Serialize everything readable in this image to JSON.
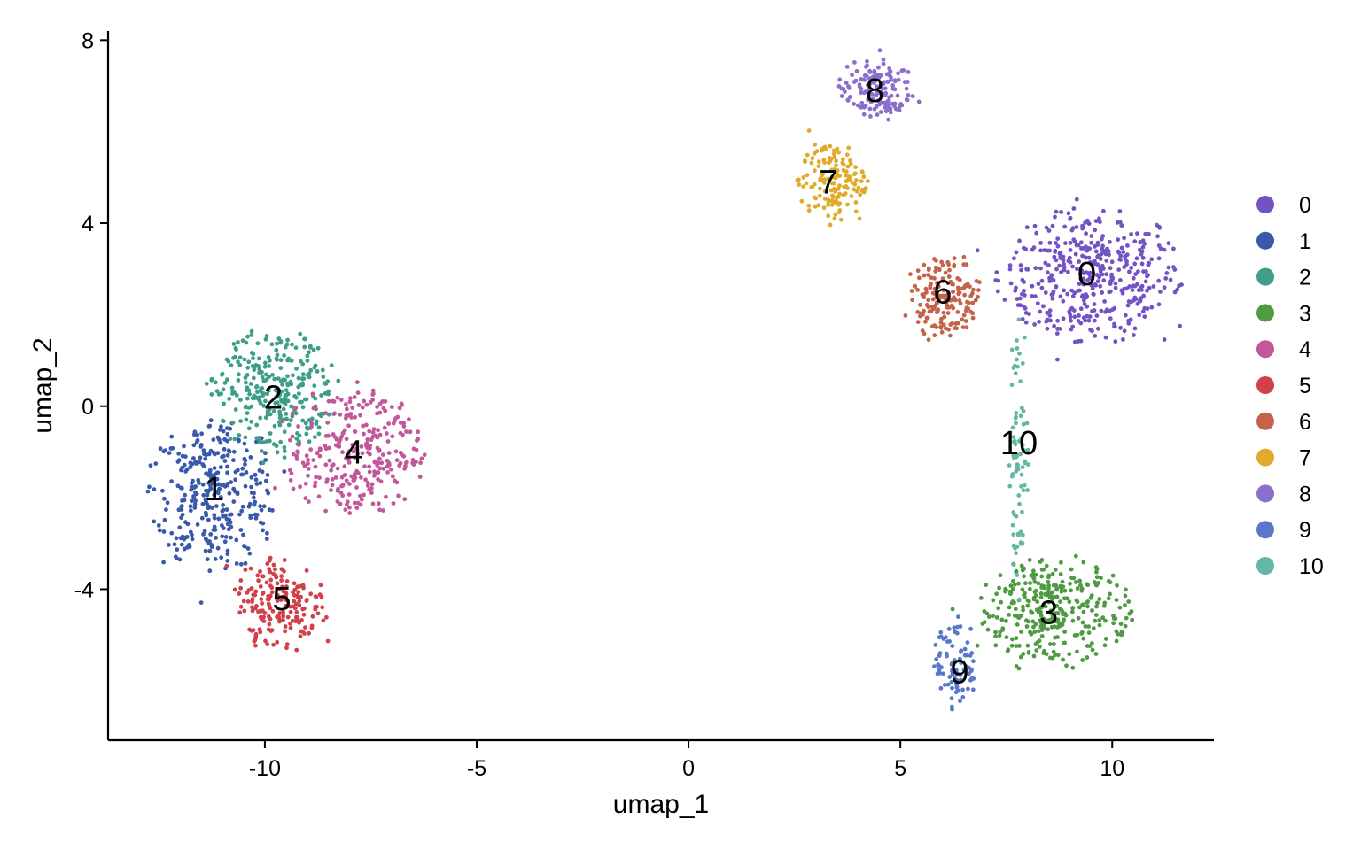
{
  "chart_data": {
    "type": "scatter",
    "xlabel": "umap_1",
    "ylabel": "umap_2",
    "xlim": [
      -13.7,
      12.4
    ],
    "ylim": [
      -7.3,
      8.2
    ],
    "x_ticks": [
      -10,
      -5,
      0,
      5,
      10
    ],
    "x_tick_labels": [
      "-10",
      "-5",
      "0",
      "5",
      "10"
    ],
    "y_ticks": [
      -4,
      0,
      4,
      8
    ],
    "y_tick_labels": [
      "-4",
      "0",
      "4",
      "8"
    ],
    "grid": false,
    "legend_position": "right",
    "clusters": [
      {
        "name": "0",
        "color": "#7353c4",
        "label_pos": [
          9.4,
          2.9
        ],
        "center": [
          9.5,
          2.8
        ],
        "spread": [
          1.1,
          0.75
        ],
        "count": 420
      },
      {
        "name": "1",
        "color": "#3a59ab",
        "label_pos": [
          -11.2,
          -1.8
        ],
        "center": [
          -11.2,
          -1.9
        ],
        "spread": [
          0.75,
          0.85
        ],
        "count": 330
      },
      {
        "name": "2",
        "color": "#3e9e88",
        "label_pos": [
          -9.8,
          0.2
        ],
        "center": [
          -9.8,
          0.3
        ],
        "spread": [
          0.75,
          0.7
        ],
        "count": 300
      },
      {
        "name": "3",
        "color": "#4f9a42",
        "label_pos": [
          8.5,
          -4.5
        ],
        "center": [
          8.6,
          -4.5
        ],
        "spread": [
          0.9,
          0.6
        ],
        "count": 340
      },
      {
        "name": "4",
        "color": "#c2589a",
        "label_pos": [
          -7.9,
          -1.0
        ],
        "center": [
          -7.9,
          -1.0
        ],
        "spread": [
          0.8,
          0.75
        ],
        "count": 290
      },
      {
        "name": "5",
        "color": "#d1414a",
        "label_pos": [
          -9.6,
          -4.2
        ],
        "center": [
          -9.6,
          -4.3
        ],
        "spread": [
          0.55,
          0.55
        ],
        "count": 190
      },
      {
        "name": "6",
        "color": "#c4634a",
        "label_pos": [
          6.0,
          2.5
        ],
        "center": [
          6.0,
          2.4
        ],
        "spread": [
          0.45,
          0.45
        ],
        "count": 170
      },
      {
        "name": "7",
        "color": "#e0ab2c",
        "label_pos": [
          3.3,
          4.9
        ],
        "center": [
          3.4,
          4.9
        ],
        "spread": [
          0.4,
          0.45
        ],
        "count": 150
      },
      {
        "name": "8",
        "color": "#8b6fcc",
        "label_pos": [
          4.4,
          6.9
        ],
        "center": [
          4.4,
          6.9
        ],
        "spread": [
          0.45,
          0.35
        ],
        "count": 150
      },
      {
        "name": "9",
        "color": "#5978c8",
        "label_pos": [
          6.4,
          -5.8
        ],
        "center": [
          6.3,
          -5.6
        ],
        "spread": [
          0.25,
          0.5
        ],
        "count": 90
      },
      {
        "name": "10",
        "color": "#62b8a2",
        "label_pos": [
          7.8,
          -0.8
        ],
        "center": [
          7.8,
          -1.0
        ],
        "spread": [
          0.12,
          1.5
        ],
        "count": 80
      }
    ]
  }
}
